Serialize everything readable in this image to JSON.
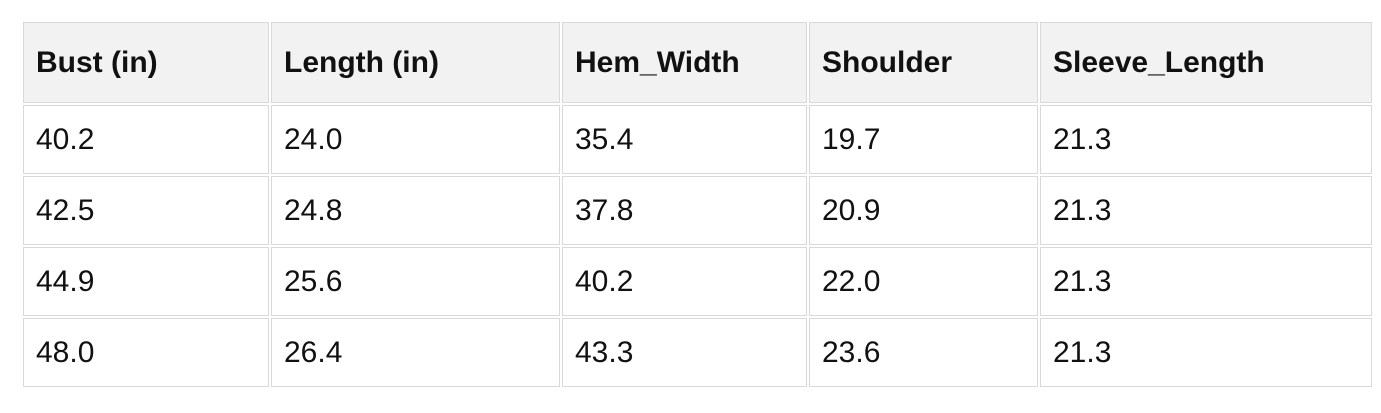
{
  "colors": {
    "header_bg": "#f2f2f2",
    "border": "#d9d9d9",
    "text": "#111111",
    "page_bg": "#ffffff"
  },
  "chart_data": {
    "type": "table",
    "title": "",
    "columns": [
      "Bust (in)",
      "Length (in)",
      "Hem_Width",
      "Shoulder",
      "Sleeve_Length"
    ],
    "rows": [
      [
        "40.2",
        "24.0",
        "35.4",
        "19.7",
        "21.3"
      ],
      [
        "42.5",
        "24.8",
        "37.8",
        "20.9",
        "21.3"
      ],
      [
        "44.9",
        "25.6",
        "40.2",
        "22.0",
        "21.3"
      ],
      [
        "48.0",
        "26.4",
        "43.3",
        "23.6",
        "21.3"
      ]
    ]
  }
}
